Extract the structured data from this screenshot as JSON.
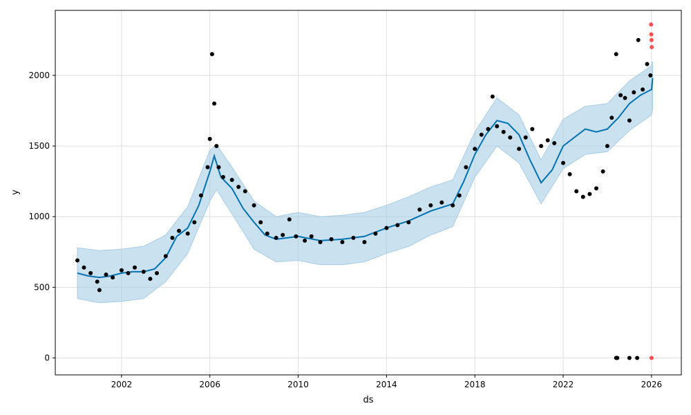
{
  "chart_data": {
    "type": "line",
    "title": "",
    "xlabel": "ds",
    "ylabel": "y",
    "xlim": [
      1999.0,
      2027.35
    ],
    "ylim": [
      -120,
      2460
    ],
    "grid": true,
    "x_ticks": [
      2002,
      2006,
      2010,
      2014,
      2018,
      2022,
      2026
    ],
    "x_tick_labels": [
      "2002",
      "2006",
      "2010",
      "2014",
      "2018",
      "2022",
      "2026"
    ],
    "y_ticks": [
      0,
      500,
      1000,
      1500,
      2000
    ],
    "y_tick_labels": [
      "0",
      "500",
      "1000",
      "1500",
      "2000"
    ],
    "colors": {
      "observed": "#000000",
      "forecast": "#0072B2",
      "interval": "#a6cde6",
      "outlier": "#ff3333",
      "grid": "#dddddd"
    },
    "series": [
      {
        "kind": "scatter",
        "x": [
          2000.0,
          2000.3,
          2000.6,
          2000.9,
          2001.0,
          2001.3,
          2001.6,
          2002.0,
          2002.3,
          2002.6,
          2003.0,
          2003.3,
          2003.6,
          2004.0,
          2004.3,
          2004.6,
          2005.0,
          2005.3,
          2005.6,
          2005.9,
          2006.0,
          2006.1,
          2006.2,
          2006.3,
          2006.4,
          2006.6,
          2007.0,
          2007.3,
          2007.6,
          2008.0,
          2008.3,
          2008.6,
          2009.0,
          2009.3,
          2009.6,
          2009.9,
          2010.3,
          2010.6,
          2011.0,
          2011.5,
          2012.0,
          2012.5,
          2013.0,
          2013.5,
          2014.0,
          2014.5,
          2015.0,
          2015.5,
          2016.0,
          2016.5,
          2017.0,
          2017.3,
          2017.6,
          2018.0,
          2018.3,
          2018.6,
          2018.8,
          2019.0,
          2019.3,
          2019.6,
          2020.0,
          2020.3,
          2020.6,
          2021.0,
          2021.3,
          2021.6,
          2022.0,
          2022.3,
          2022.6,
          2022.9,
          2023.2,
          2023.5,
          2023.8,
          2024.0,
          2024.2,
          2024.4,
          2024.6,
          2024.8,
          2025.0,
          2025.2,
          2025.4,
          2025.6,
          2025.8,
          2025.95,
          2024.4,
          2024.45,
          2025.0,
          2025.35
        ],
        "y": [
          690,
          640,
          600,
          540,
          480,
          590,
          570,
          620,
          600,
          640,
          610,
          560,
          600,
          720,
          850,
          900,
          880,
          960,
          1150,
          1350,
          1550,
          2150,
          1800,
          1500,
          1350,
          1280,
          1260,
          1210,
          1180,
          1080,
          960,
          880,
          850,
          870,
          980,
          860,
          830,
          860,
          820,
          840,
          820,
          850,
          820,
          880,
          920,
          940,
          960,
          1050,
          1080,
          1100,
          1080,
          1150,
          1350,
          1480,
          1580,
          1620,
          1850,
          1640,
          1600,
          1560,
          1480,
          1560,
          1620,
          1500,
          1540,
          1520,
          1380,
          1300,
          1180,
          1140,
          1160,
          1200,
          1320,
          1500,
          1700,
          2150,
          1860,
          1840,
          1680,
          1880,
          2250,
          1900,
          2080,
          2000,
          0,
          0,
          0,
          0
        ]
      },
      {
        "kind": "scatter-outlier",
        "x": [
          2025.98,
          2025.99,
          2026.0,
          2026.01,
          2026.0
        ],
        "y": [
          2360,
          2290,
          2250,
          2200,
          0
        ]
      },
      {
        "kind": "trend",
        "x": [
          2000.0,
          2000.5,
          2001.0,
          2001.5,
          2002.0,
          2002.5,
          2003.0,
          2003.5,
          2004.0,
          2004.5,
          2005.0,
          2005.5,
          2006.0,
          2006.2,
          2006.5,
          2007.0,
          2007.5,
          2008.0,
          2008.5,
          2009.0,
          2009.5,
          2010.0,
          2011.0,
          2012.0,
          2013.0,
          2014.0,
          2015.0,
          2016.0,
          2017.0,
          2017.5,
          2018.0,
          2018.5,
          2019.0,
          2019.5,
          2020.0,
          2020.5,
          2021.0,
          2021.5,
          2022.0,
          2022.5,
          2023.0,
          2023.5,
          2024.0,
          2024.5,
          2025.0,
          2025.5,
          2026.0,
          2026.05
        ],
        "y": [
          600,
          580,
          570,
          580,
          600,
          610,
          610,
          630,
          710,
          860,
          920,
          1080,
          1320,
          1430,
          1280,
          1200,
          1060,
          960,
          870,
          840,
          850,
          860,
          830,
          840,
          860,
          920,
          970,
          1040,
          1090,
          1250,
          1440,
          1580,
          1680,
          1660,
          1580,
          1400,
          1240,
          1330,
          1500,
          1560,
          1620,
          1600,
          1620,
          1700,
          1800,
          1860,
          1900,
          1980
        ]
      },
      {
        "kind": "interval-upper",
        "x": [
          2000.0,
          2001.0,
          2002.0,
          2003.0,
          2004.0,
          2005.0,
          2006.0,
          2006.3,
          2007.0,
          2008.0,
          2009.0,
          2010.0,
          2011.0,
          2012.0,
          2013.0,
          2014.0,
          2015.0,
          2016.0,
          2017.0,
          2018.0,
          2019.0,
          2020.0,
          2021.0,
          2022.0,
          2023.0,
          2024.0,
          2025.0,
          2026.0,
          2026.05
        ],
        "y": [
          780,
          760,
          770,
          790,
          870,
          1070,
          1470,
          1510,
          1350,
          1110,
          1000,
          1030,
          1000,
          1010,
          1030,
          1080,
          1140,
          1210,
          1260,
          1600,
          1840,
          1720,
          1400,
          1690,
          1780,
          1800,
          1960,
          2070,
          2100
        ]
      },
      {
        "kind": "interval-lower",
        "x": [
          2000.0,
          2001.0,
          2002.0,
          2003.0,
          2004.0,
          2005.0,
          2006.0,
          2006.3,
          2007.0,
          2008.0,
          2009.0,
          2010.0,
          2011.0,
          2012.0,
          2013.0,
          2014.0,
          2015.0,
          2016.0,
          2017.0,
          2018.0,
          2019.0,
          2020.0,
          2021.0,
          2022.0,
          2023.0,
          2024.0,
          2025.0,
          2026.0,
          2026.05
        ],
        "y": [
          420,
          390,
          400,
          420,
          540,
          740,
          1110,
          1190,
          1020,
          770,
          680,
          690,
          660,
          660,
          680,
          740,
          790,
          870,
          930,
          1280,
          1500,
          1380,
          1090,
          1340,
          1440,
          1460,
          1610,
          1720,
          1760
        ]
      }
    ]
  }
}
